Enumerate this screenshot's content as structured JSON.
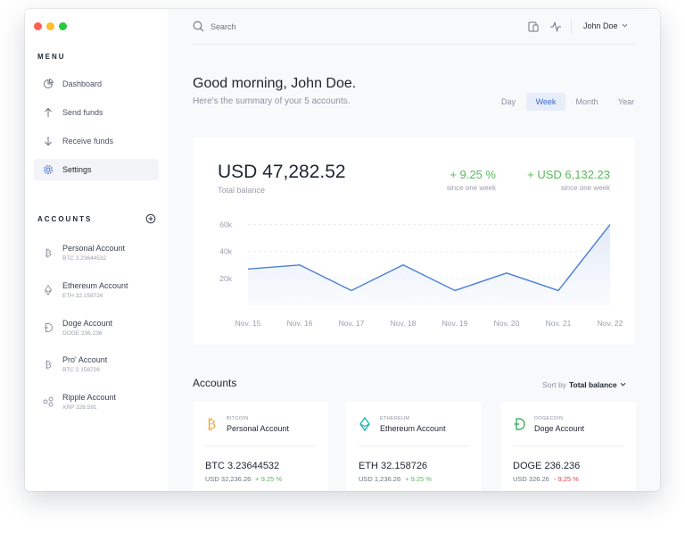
{
  "colors": {
    "accent": "#3a68c9",
    "positive": "#5cb85c",
    "negative": "#e0454b",
    "bitcoin": "#f2a93b",
    "ethereum": "#1fb5b5",
    "doge": "#48b26b"
  },
  "sidebar": {
    "menu_heading": "MENU",
    "items": [
      {
        "label": "Dashboard",
        "icon": "pie-chart-icon"
      },
      {
        "label": "Send funds",
        "icon": "arrow-up-icon"
      },
      {
        "label": "Receive funds",
        "icon": "arrow-down-icon"
      },
      {
        "label": "Settings",
        "icon": "gear-icon",
        "active": true
      }
    ],
    "accounts_heading": "ACCOUNTS",
    "accounts": [
      {
        "name": "Personal Account",
        "sub": "BTC 3.23644532",
        "icon": "bitcoin-icon"
      },
      {
        "name": "Ethereum Account",
        "sub": "ETH 32.158726",
        "icon": "ethereum-icon"
      },
      {
        "name": "Doge Account",
        "sub": "DOGE 236.236",
        "icon": "doge-icon"
      },
      {
        "name": "Pro' Account",
        "sub": "BTC 2.158726",
        "icon": "bitcoin-icon"
      },
      {
        "name": "Ripple Account",
        "sub": "XRP 326.591",
        "icon": "ripple-icon"
      }
    ]
  },
  "topbar": {
    "search_placeholder": "Search",
    "user_name": "John Doe"
  },
  "header": {
    "greeting": "Good morning, John Doe.",
    "subtitle": "Here's the summary of your 5 accounts.",
    "ranges": [
      "Day",
      "Week",
      "Month",
      "Year"
    ],
    "active_range": "Week"
  },
  "summary": {
    "balance": "USD 47,282.52",
    "balance_label": "Total balance",
    "pct_change": "+ 9.25 %",
    "pct_label": "since one week",
    "usd_change": "+ USD 6,132.23",
    "usd_label": "since one week"
  },
  "chart_data": {
    "type": "area",
    "x": [
      "Nov. 15",
      "Nov. 16",
      "Nov. 17",
      "Nov. 18",
      "Nov. 19",
      "Nov. 20",
      "Nov. 21",
      "Nov. 22"
    ],
    "values": [
      27000,
      30000,
      11000,
      30000,
      11000,
      24000,
      11000,
      60000
    ],
    "ytick_labels": [
      "60k",
      "40k",
      "20k"
    ],
    "yticks": [
      60000,
      40000,
      20000
    ],
    "ylim": [
      0,
      65000
    ],
    "grid": true
  },
  "accounts_section": {
    "title": "Accounts",
    "sort_prefix": "Sort by",
    "sort_value": "Total balance",
    "cards": [
      {
        "type": "BITCOIN",
        "name": "Personal Account",
        "amount": "BTC 3.23644532",
        "usd": "USD 32,236.26",
        "change": "+ 9.25 %",
        "positive": true,
        "icon": "bitcoin-icon"
      },
      {
        "type": "ETHEREUM",
        "name": "Ethereum Account",
        "amount": "ETH 32.158726",
        "usd": "USD 1,236.26",
        "change": "+ 9.25 %",
        "positive": true,
        "icon": "ethereum-icon"
      },
      {
        "type": "DOGECOIN",
        "name": "Doge Account",
        "amount": "DOGE 236.236",
        "usd": "USD 326.26",
        "change": "- 9.25 %",
        "positive": false,
        "icon": "doge-icon"
      }
    ]
  }
}
